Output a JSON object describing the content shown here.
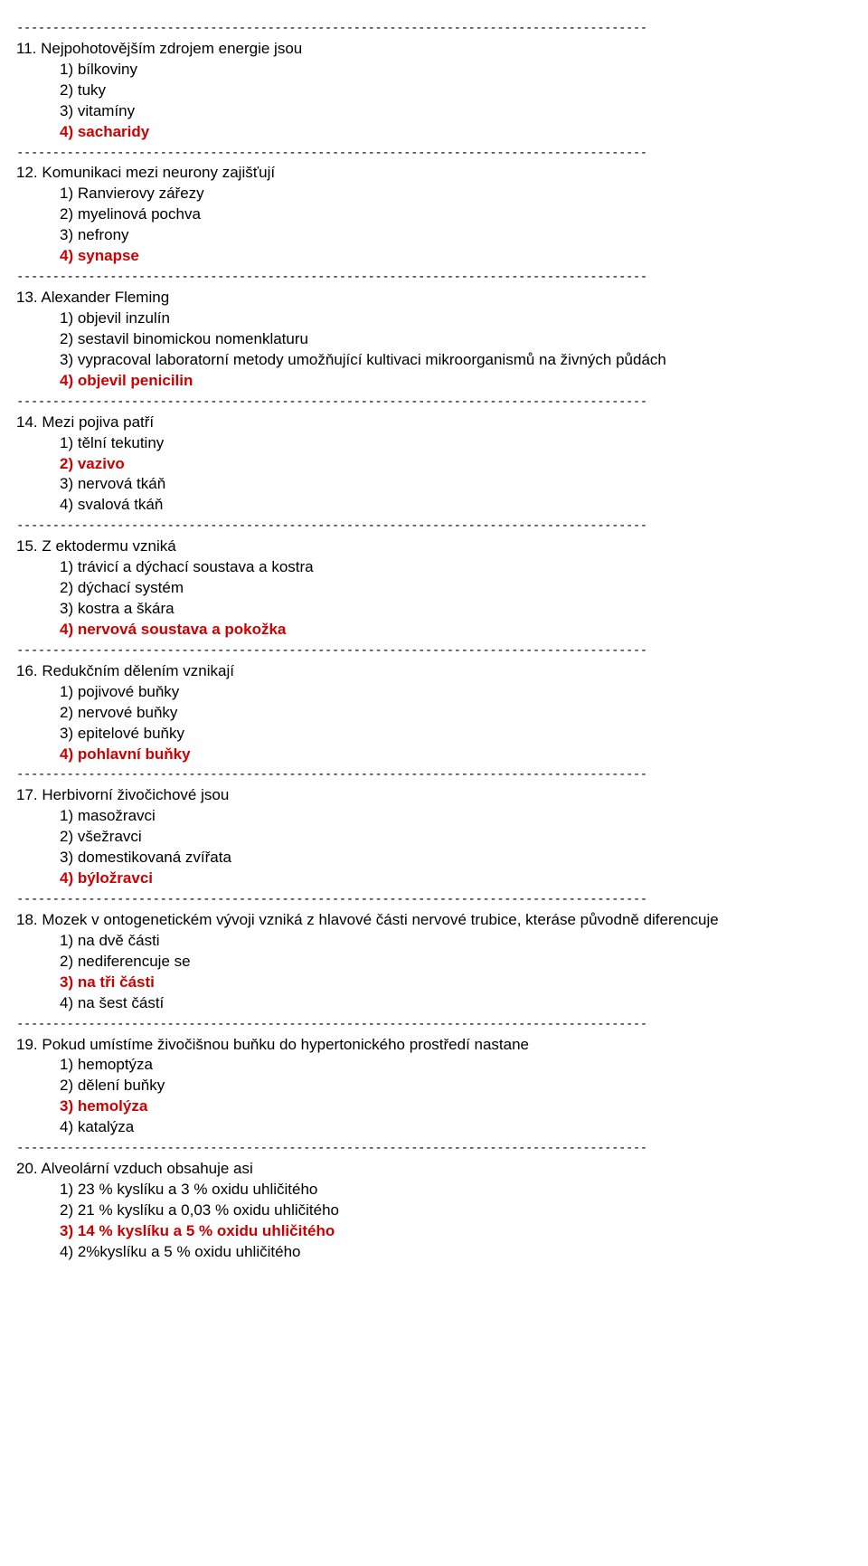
{
  "separator": "----------------------------------------------------------------------------------------",
  "colors": {
    "text": "#000000",
    "highlight": "#cc0000",
    "background": "#ffffff"
  },
  "font": {
    "family": "Arial",
    "size_pt": 13
  },
  "questions": [
    {
      "num": "11.",
      "text": "Nejpohotovějším zdrojem energie jsou",
      "options": [
        {
          "n": "1)",
          "t": "bílkoviny",
          "correct": false
        },
        {
          "n": "2)",
          "t": "tuky",
          "correct": false
        },
        {
          "n": "3)",
          "t": "vitamíny",
          "correct": false
        },
        {
          "n": "4)",
          "t": "sacharidy",
          "correct": true
        }
      ]
    },
    {
      "num": "12.",
      "text": "Komunikaci mezi neurony zajišťují",
      "options": [
        {
          "n": "1)",
          "t": "Ranvierovy zářezy",
          "correct": false
        },
        {
          "n": "2)",
          "t": "myelinová pochva",
          "correct": false
        },
        {
          "n": "3)",
          "t": "nefrony",
          "correct": false
        },
        {
          "n": "4)",
          "t": "synapse",
          "correct": true
        }
      ]
    },
    {
      "num": "13.",
      "text": "Alexander Fleming",
      "options": [
        {
          "n": "1)",
          "t": "objevil inzulín",
          "correct": false
        },
        {
          "n": "2)",
          "t": "sestavil binomickou nomenklaturu",
          "correct": false
        },
        {
          "n": "3)",
          "t": "vypracoval laboratorní metody umožňující kultivaci mikroorganismů na živných půdách",
          "correct": false
        },
        {
          "n": "4)",
          "t": "objevil penicilin",
          "correct": true
        }
      ]
    },
    {
      "num": "14.",
      "text": "Mezi pojiva patří",
      "options": [
        {
          "n": "1)",
          "t": "tělní tekutiny",
          "correct": false
        },
        {
          "n": "2)",
          "t": "vazivo",
          "correct": true
        },
        {
          "n": "3)",
          "t": "nervová tkáň",
          "correct": false
        },
        {
          "n": "4)",
          "t": "svalová tkáň",
          "correct": false
        }
      ]
    },
    {
      "num": "15.",
      "text": "Z ektodermu vzniká",
      "options": [
        {
          "n": "1)",
          "t": "trávicí a dýchací soustava a kostra",
          "correct": false
        },
        {
          "n": "2)",
          "t": "dýchací systém",
          "correct": false
        },
        {
          "n": "3)",
          "t": "kostra a škára",
          "correct": false
        },
        {
          "n": "4)",
          "t": "nervová soustava a pokožka",
          "correct": true
        }
      ]
    },
    {
      "num": "16.",
      "text": "Redukčním dělením vznikají",
      "options": [
        {
          "n": "1)",
          "t": "pojivové buňky",
          "correct": false
        },
        {
          "n": "2)",
          "t": "nervové buňky",
          "correct": false
        },
        {
          "n": "3)",
          "t": "epitelové buňky",
          "correct": false
        },
        {
          "n": "4)",
          "t": "pohlavní buňky",
          "correct": true
        }
      ]
    },
    {
      "num": "17.",
      "text": "Herbivorní živočichové jsou",
      "options": [
        {
          "n": "1)",
          "t": "masožravci",
          "correct": false
        },
        {
          "n": "2)",
          "t": "všežravci",
          "correct": false
        },
        {
          "n": "3)",
          "t": "domestikovaná zvířata",
          "correct": false
        },
        {
          "n": "4)",
          "t": "býložravci",
          "correct": true
        }
      ]
    },
    {
      "num": "18.",
      "text": "Mozek v ontogenetickém vývoji vzniká z hlavové části nervové trubice, kteráse původně diferencuje",
      "options": [
        {
          "n": "1)",
          "t": "na dvě části",
          "correct": false
        },
        {
          "n": "2)",
          "t": "nediferencuje se",
          "correct": false
        },
        {
          "n": "3)",
          "t": "na tři části",
          "correct": true
        },
        {
          "n": "4)",
          "t": "na šest částí",
          "correct": false
        }
      ]
    },
    {
      "num": "19.",
      "text": "Pokud umístíme živočišnou buňku do hypertonického prostředí nastane",
      "options": [
        {
          "n": "1)",
          "t": "hemoptýza",
          "correct": false
        },
        {
          "n": "2)",
          "t": "dělení buňky",
          "correct": false
        },
        {
          "n": "3)",
          "t": "hemolýza",
          "correct": true
        },
        {
          "n": "4)",
          "t": "katalýza",
          "correct": false
        }
      ]
    },
    {
      "num": "20.",
      "text": "Alveolární vzduch obsahuje asi",
      "options": [
        {
          "n": "1)",
          "t": "23 % kyslíku a 3 % oxidu uhličitého",
          "correct": false
        },
        {
          "n": "2)",
          "t": "21 % kyslíku a 0,03 % oxidu uhličitého",
          "correct": false
        },
        {
          "n": "3)",
          "t": "14 % kyslíku a 5 % oxidu uhličitého",
          "correct": true
        },
        {
          "n": "4)",
          "t": "2%kyslíku a 5 % oxidu uhličitého",
          "correct": false
        }
      ]
    }
  ]
}
